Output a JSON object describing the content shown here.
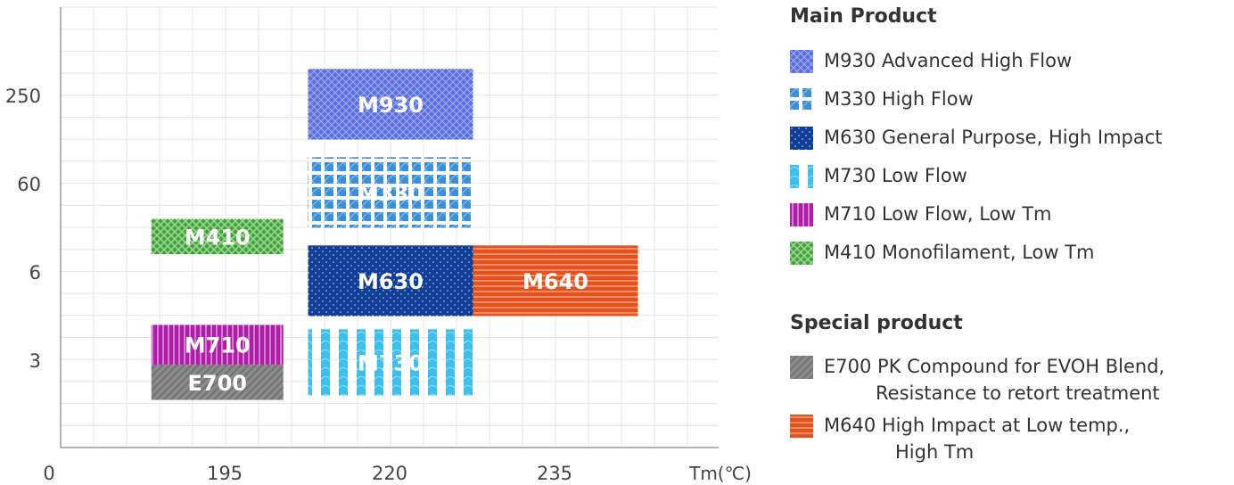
{
  "chart_data": {
    "type": "bar",
    "subtype": "range-blocks",
    "x_axis": {
      "label": "Tm(℃)",
      "tick_labels": [
        "0",
        "195",
        "220",
        "235"
      ]
    },
    "y_axis": {
      "label": "",
      "tick_labels": [
        "250",
        "60",
        "6",
        "3"
      ]
    },
    "grid": true,
    "legend_position": "right",
    "blocks": [
      {
        "name": "M930",
        "x_range": [
          "195 + 10",
          "220 + 5"
        ],
        "x": [
          1.5,
          2.5
        ],
        "y": [
          2.5,
          3.3
        ],
        "color": "#5a6fe0",
        "pattern": "crosshatch"
      },
      {
        "name": "M330",
        "x": [
          1.5,
          2.5
        ],
        "y": [
          1.5,
          2.3
        ],
        "color": "#3b8fd6",
        "pattern": "diamond"
      },
      {
        "name": "M410",
        "x": [
          0.55,
          1.35
        ],
        "y": [
          1.2,
          1.6
        ],
        "color": "#3fa534",
        "pattern": "checker"
      },
      {
        "name": "M630",
        "x": [
          1.5,
          2.5
        ],
        "y": [
          0.5,
          1.3
        ],
        "color": "#123f96",
        "pattern": "dots"
      },
      {
        "name": "M640",
        "x": [
          2.5,
          3.5
        ],
        "y": [
          0.5,
          1.3
        ],
        "color": "#e2521d",
        "pattern": "horizontal"
      },
      {
        "name": "M710",
        "x": [
          0.55,
          1.35
        ],
        "y": [
          -0.05,
          0.4
        ],
        "color": "#b01ea9",
        "pattern": "vertical"
      },
      {
        "name": "E700",
        "x": [
          0.55,
          1.35
        ],
        "y": [
          -0.45,
          -0.05
        ],
        "color": "#8a8a8a",
        "pattern": "diagonal"
      },
      {
        "name": "M730",
        "x": [
          1.5,
          2.5
        ],
        "y": [
          -0.4,
          0.35
        ],
        "color": "#3ec0ec",
        "pattern": "wave"
      }
    ]
  },
  "legend": {
    "main_heading": "Main Product",
    "special_heading": "Special product",
    "main_items": [
      {
        "text": "M930 Advanced High Flow",
        "color": "#5a6fe0",
        "pattern": "crosshatch"
      },
      {
        "text": "M330 High Flow",
        "color": "#3b8fd6",
        "pattern": "diamond"
      },
      {
        "text": "M630 General Purpose, High Impact",
        "color": "#123f96",
        "pattern": "dots"
      },
      {
        "text": "M730 Low Flow",
        "color": "#3ec0ec",
        "pattern": "wave"
      },
      {
        "text": "M710 Low Flow, Low Tm",
        "color": "#b01ea9",
        "pattern": "vertical"
      },
      {
        "text": "M410 Monofilament, Low Tm",
        "color": "#3fa534",
        "pattern": "checker"
      }
    ],
    "special_items": [
      {
        "line1": "E700 PK Compound for EVOH Blend,",
        "line2": "Resistance to retort treatment",
        "color": "#8a8a8a",
        "pattern": "diagonal"
      },
      {
        "line1": "M640 High Impact at Low temp.,",
        "line2": "High Tm",
        "color": "#e2521d",
        "pattern": "horizontal"
      }
    ]
  }
}
